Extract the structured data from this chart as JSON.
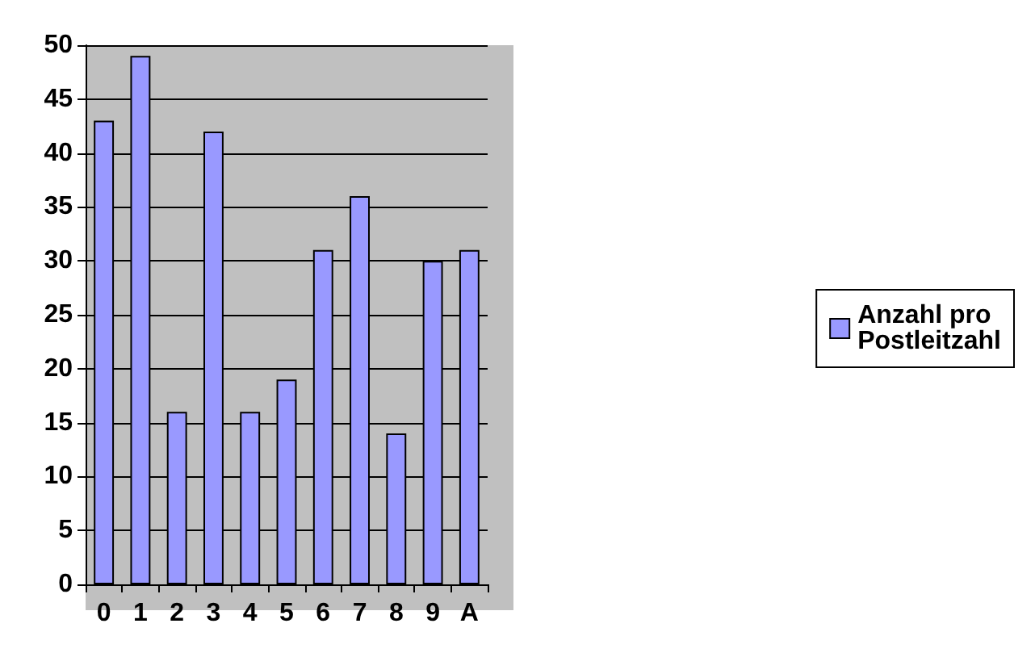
{
  "chart_data": {
    "type": "bar",
    "categories": [
      "0",
      "1",
      "2",
      "3",
      "4",
      "5",
      "6",
      "7",
      "8",
      "9",
      "A"
    ],
    "series": [
      {
        "name": "Anzahl pro Postleitzahl",
        "color": "#9999ff",
        "values": [
          43,
          49,
          16,
          42,
          16,
          19,
          31,
          36,
          14,
          30,
          31
        ]
      }
    ],
    "ylim": [
      0,
      50
    ],
    "yticks": [
      0,
      5,
      10,
      15,
      20,
      25,
      30,
      35,
      40,
      45,
      50
    ],
    "grid": "y",
    "legend": "right"
  }
}
